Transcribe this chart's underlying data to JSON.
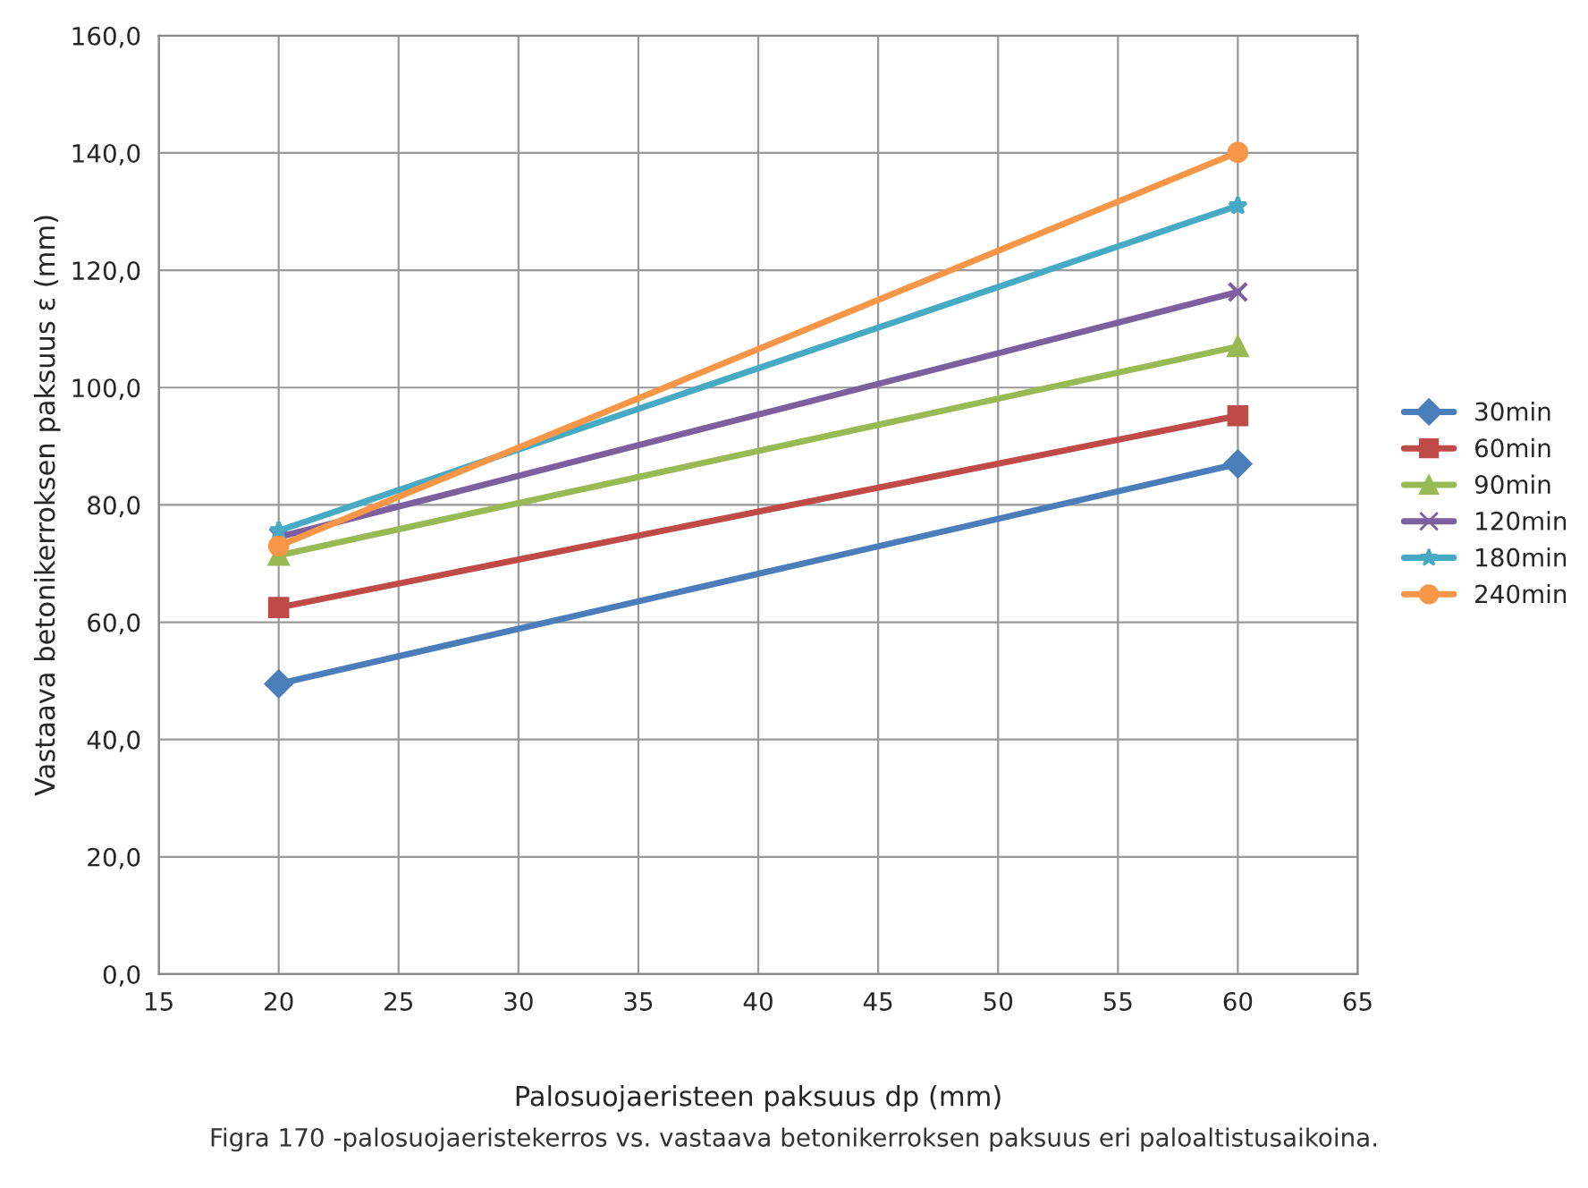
{
  "chart_data": {
    "type": "line",
    "xlabel": "Palosuojaeristeen paksuus dp (mm)",
    "ylabel": "Vastaava betonikerroksen paksuus ε (mm)",
    "annotations": [
      "Figra 170 -palosuojaeristekerros vs. vastaava betonikerroksen paksuus eri paloaltistusaikoina."
    ],
    "x": [
      20,
      60
    ],
    "series": [
      {
        "name": "30min",
        "color": "#4a7ebb",
        "marker": "diamond",
        "values": [
          49.5,
          87.0
        ]
      },
      {
        "name": "60min",
        "color": "#be4b48",
        "marker": "square",
        "values": [
          62.5,
          95.2
        ]
      },
      {
        "name": "90min",
        "color": "#98b954",
        "marker": "triangle",
        "values": [
          71.4,
          107.0
        ]
      },
      {
        "name": "120min",
        "color": "#7d5fa0",
        "marker": "cross",
        "values": [
          74.5,
          116.3
        ]
      },
      {
        "name": "180min",
        "color": "#46aac5",
        "marker": "star",
        "values": [
          75.6,
          131.0
        ]
      },
      {
        "name": "240min",
        "color": "#f79646",
        "marker": "circle",
        "values": [
          73.0,
          140.1
        ]
      }
    ],
    "xlim": [
      15,
      65
    ],
    "xticks": [
      15,
      20,
      25,
      30,
      35,
      40,
      45,
      50,
      55,
      60,
      65
    ],
    "ylim": [
      0,
      160
    ],
    "yticks": [
      {
        "value": 0,
        "label": "0,0"
      },
      {
        "value": 20,
        "label": "20,0"
      },
      {
        "value": 40,
        "label": "40,0"
      },
      {
        "value": 60,
        "label": "60,0"
      },
      {
        "value": 80,
        "label": "80,0"
      },
      {
        "value": 100,
        "label": "100,0"
      },
      {
        "value": 120,
        "label": "120,0"
      },
      {
        "value": 140,
        "label": "140,0"
      },
      {
        "value": 160,
        "label": "160,0"
      }
    ],
    "grid": true,
    "legend": "right",
    "line_style": "solid"
  }
}
